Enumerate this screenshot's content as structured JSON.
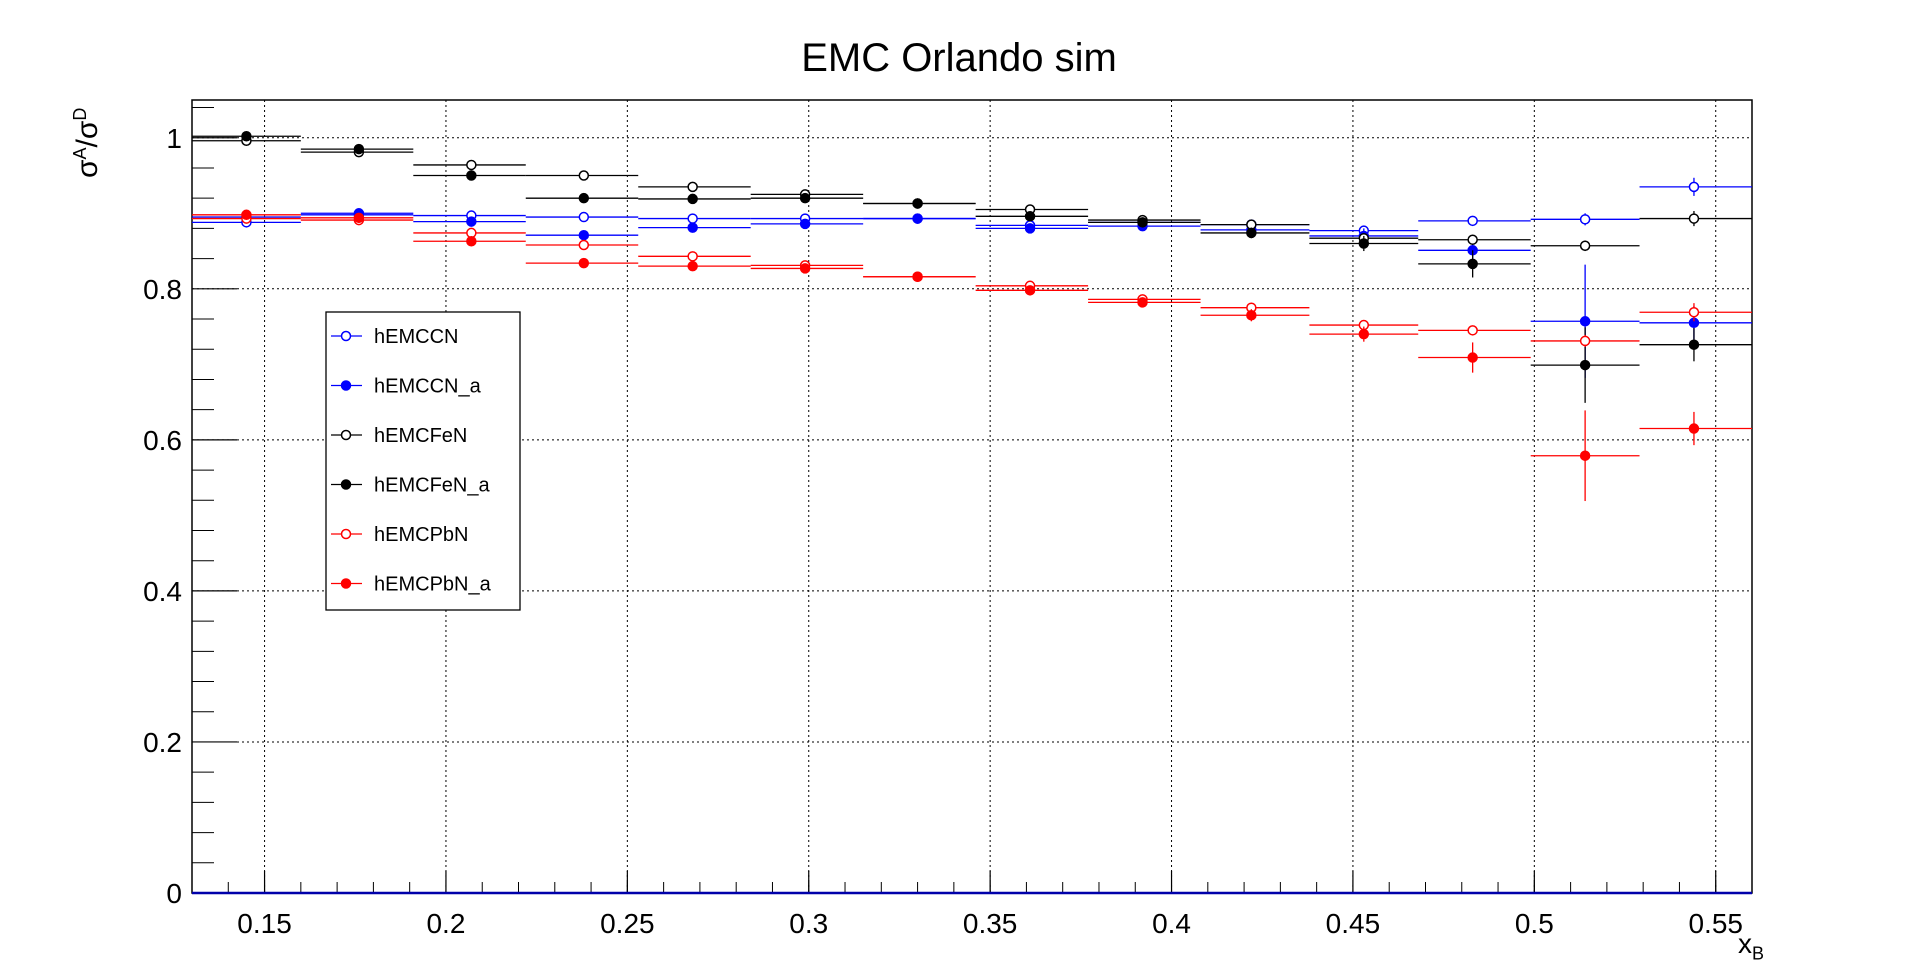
{
  "chart_data": {
    "type": "scatter",
    "title": "EMC Orlando sim",
    "xlabel": "x_B",
    "ylabel": "σ^A/σ^D",
    "xlim": [
      0.13,
      0.56
    ],
    "ylim": [
      0,
      1.05
    ],
    "x_ticks": [
      "0.15",
      "0.2",
      "0.25",
      "0.3",
      "0.35",
      "0.4",
      "0.45",
      "0.5",
      "0.55"
    ],
    "y_ticks": [
      "0",
      "0.2",
      "0.4",
      "0.6",
      "0.8",
      "1"
    ],
    "grid": true,
    "legend_position": "left",
    "bins": [
      0.13,
      0.16,
      0.191,
      0.222,
      0.253,
      0.284,
      0.315,
      0.346,
      0.377,
      0.408,
      0.438,
      0.468,
      0.499,
      0.529,
      0.56
    ],
    "series": [
      {
        "name": "hEMCCN",
        "color": "#0000ff",
        "marker": "open",
        "x": [
          0.145,
          0.176,
          0.207,
          0.238,
          0.268,
          0.299,
          0.33,
          0.361,
          0.392,
          0.422,
          0.453,
          0.483,
          0.514,
          0.544
        ],
        "y": [
          0.888,
          0.898,
          0.897,
          0.895,
          0.893,
          0.893,
          0.893,
          0.884,
          0.888,
          0.885,
          0.877,
          0.89,
          0.892,
          0.935
        ],
        "err": [
          0.003,
          0.003,
          0.003,
          0.003,
          0.003,
          0.003,
          0.003,
          0.003,
          0.004,
          0.004,
          0.005,
          0.006,
          0.008,
          0.012
        ]
      },
      {
        "name": "hEMCCN_a",
        "color": "#0000ff",
        "marker": "filled",
        "x": [
          0.145,
          0.176,
          0.207,
          0.238,
          0.268,
          0.299,
          0.33,
          0.361,
          0.392,
          0.422,
          0.453,
          0.483,
          0.514,
          0.544
        ],
        "y": [
          0.895,
          0.9,
          0.889,
          0.871,
          0.881,
          0.886,
          0.893,
          0.88,
          0.883,
          0.878,
          0.87,
          0.851,
          0.757,
          0.755
        ],
        "err": [
          0.004,
          0.004,
          0.004,
          0.004,
          0.004,
          0.004,
          0.004,
          0.005,
          0.006,
          0.007,
          0.01,
          0.018,
          0.075,
          0.022
        ]
      },
      {
        "name": "hEMCFeN",
        "color": "#000000",
        "marker": "open",
        "x": [
          0.145,
          0.176,
          0.207,
          0.238,
          0.268,
          0.299,
          0.33,
          0.361,
          0.392,
          0.422,
          0.453,
          0.483,
          0.514,
          0.544
        ],
        "y": [
          0.996,
          0.981,
          0.964,
          0.95,
          0.935,
          0.925,
          0.913,
          0.905,
          0.891,
          0.885,
          0.867,
          0.865,
          0.857,
          0.893
        ],
        "err": [
          0.003,
          0.003,
          0.003,
          0.003,
          0.003,
          0.003,
          0.003,
          0.003,
          0.004,
          0.004,
          0.005,
          0.006,
          0.007,
          0.01
        ]
      },
      {
        "name": "hEMCFeN_a",
        "color": "#000000",
        "marker": "filled",
        "x": [
          0.145,
          0.176,
          0.207,
          0.238,
          0.268,
          0.299,
          0.33,
          0.361,
          0.392,
          0.422,
          0.453,
          0.483,
          0.514,
          0.544
        ],
        "y": [
          1.002,
          0.985,
          0.95,
          0.92,
          0.919,
          0.92,
          0.913,
          0.896,
          0.888,
          0.874,
          0.86,
          0.833,
          0.699,
          0.726
        ],
        "err": [
          0.004,
          0.004,
          0.004,
          0.004,
          0.004,
          0.004,
          0.004,
          0.005,
          0.006,
          0.007,
          0.01,
          0.018,
          0.05,
          0.022
        ]
      },
      {
        "name": "hEMCPbN",
        "color": "#ff0000",
        "marker": "open",
        "x": [
          0.145,
          0.176,
          0.207,
          0.238,
          0.268,
          0.299,
          0.33,
          0.361,
          0.392,
          0.422,
          0.453,
          0.483,
          0.514,
          0.544
        ],
        "y": [
          0.893,
          0.891,
          0.874,
          0.858,
          0.843,
          0.831,
          0.816,
          0.804,
          0.786,
          0.775,
          0.752,
          0.745,
          0.731,
          0.769
        ],
        "err": [
          0.003,
          0.003,
          0.003,
          0.003,
          0.003,
          0.003,
          0.003,
          0.003,
          0.004,
          0.004,
          0.005,
          0.006,
          0.008,
          0.012
        ]
      },
      {
        "name": "hEMCPbN_a",
        "color": "#ff0000",
        "marker": "filled",
        "x": [
          0.145,
          0.176,
          0.207,
          0.238,
          0.268,
          0.299,
          0.33,
          0.361,
          0.392,
          0.422,
          0.453,
          0.483,
          0.514,
          0.544
        ],
        "y": [
          0.898,
          0.894,
          0.863,
          0.834,
          0.83,
          0.827,
          0.816,
          0.798,
          0.782,
          0.765,
          0.74,
          0.709,
          0.579,
          0.615
        ],
        "err": [
          0.004,
          0.004,
          0.004,
          0.004,
          0.004,
          0.004,
          0.004,
          0.005,
          0.006,
          0.008,
          0.01,
          0.02,
          0.06,
          0.022
        ]
      }
    ]
  }
}
